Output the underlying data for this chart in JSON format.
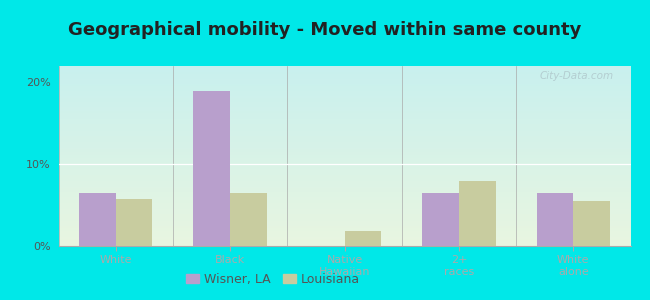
{
  "title": "Geographical mobility - Moved within same county",
  "categories": [
    "White",
    "Black",
    "Native\nHawaiian",
    "2+\nraces",
    "White\nalone"
  ],
  "wisner_values": [
    6.5,
    19.0,
    0.0,
    6.5,
    6.5
  ],
  "louisiana_values": [
    5.8,
    6.5,
    1.8,
    8.0,
    5.5
  ],
  "wisner_color": "#b89fcc",
  "louisiana_color": "#c8cc9f",
  "ylim": [
    0,
    22
  ],
  "yticks": [
    0,
    10,
    20
  ],
  "ytick_labels": [
    "0%",
    "10%",
    "20%"
  ],
  "bg_top": "#c8f0ee",
  "bg_bottom": "#e8f5e0",
  "outer_bg": "#00e8e8",
  "bar_width": 0.32,
  "legend_labels": [
    "Wisner, LA",
    "Louisiana"
  ],
  "watermark": "City-Data.com",
  "title_fontsize": 13,
  "tick_fontsize": 8,
  "legend_fontsize": 9,
  "title_color": "#222222",
  "tick_color": "#555555"
}
